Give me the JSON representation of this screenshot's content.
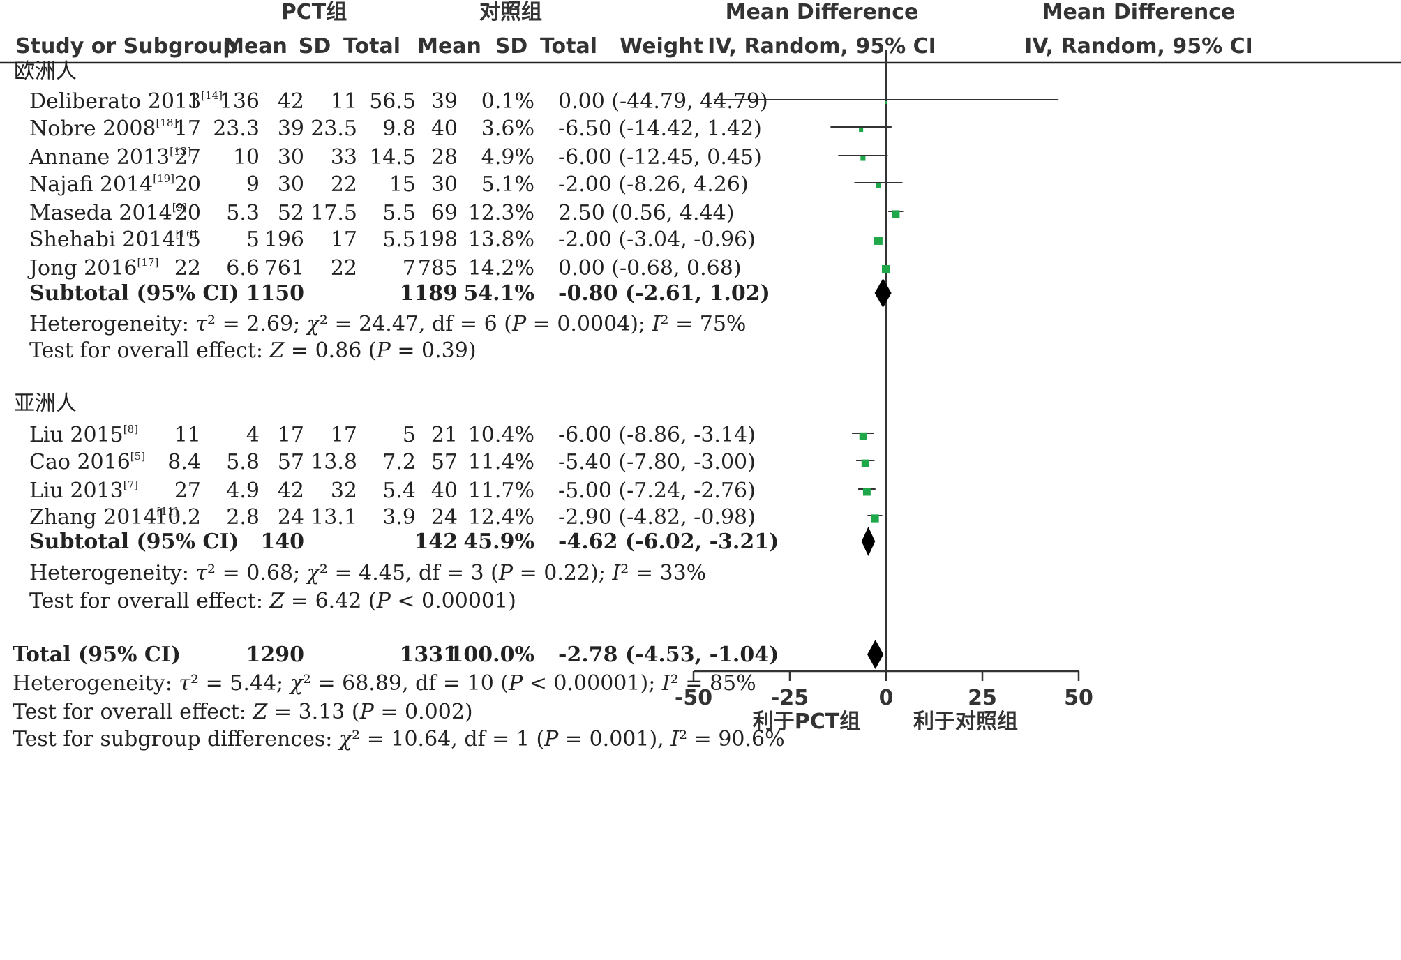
{
  "header": {
    "group_pct": "PCT组",
    "group_ctrl": "对照组",
    "md_title": "Mean Difference",
    "plot_title": "Mean Difference",
    "col_study": "Study or Subgroup",
    "col_mean1": "Mean",
    "col_sd1": "SD",
    "col_total1": "Total",
    "col_mean2": "Mean",
    "col_sd2": "SD",
    "col_total2": "Total",
    "col_weight": "Weight",
    "col_ci": "IV, Random, 95% CI",
    "plot_ci": "IV, Random, 95% CI"
  },
  "axis": {
    "ticks": [
      "-50",
      "-25",
      "0",
      "25",
      "50"
    ],
    "favors_left": "利于PCT组",
    "favors_right": "利于对照组"
  },
  "colors": {
    "square": "#1fa84a",
    "diamond": "#000000",
    "line": "#333333"
  },
  "chart_data": {
    "type": "forest",
    "xlim": [
      -50,
      50
    ],
    "x_ticks": [
      -50,
      -25,
      0,
      25,
      50
    ],
    "groups": [
      {
        "name": "欧洲人",
        "studies": [
          {
            "study": "Deliberato 2013",
            "ref": "[14]",
            "m1": "11",
            "sd1": "136",
            "n1": "42",
            "m2": "11",
            "sd2": "56.5",
            "n2": "39",
            "weight": "0.1%",
            "ci": "0.00 (-44.79, 44.79)",
            "md": 0.0,
            "lo": -44.79,
            "hi": 44.79,
            "w": 0.1
          },
          {
            "study": "Nobre 2008",
            "ref": "[18]",
            "m1": "17",
            "sd1": "23.3",
            "n1": "39",
            "m2": "23.5",
            "sd2": "9.8",
            "n2": "40",
            "weight": "3.6%",
            "ci": "-6.50 (-14.42, 1.42)",
            "md": -6.5,
            "lo": -14.42,
            "hi": 1.42,
            "w": 3.6
          },
          {
            "study": "Annane 2013",
            "ref": "[13]",
            "m1": "27",
            "sd1": "10",
            "n1": "30",
            "m2": "33",
            "sd2": "14.5",
            "n2": "28",
            "weight": "4.9%",
            "ci": "-6.00 (-12.45, 0.45)",
            "md": -6.0,
            "lo": -12.45,
            "hi": 0.45,
            "w": 4.9
          },
          {
            "study": "Najafi 2014",
            "ref": "[19]",
            "m1": "20",
            "sd1": "9",
            "n1": "30",
            "m2": "22",
            "sd2": "15",
            "n2": "30",
            "weight": "5.1%",
            "ci": "-2.00 (-8.26, 4.26)",
            "md": -2.0,
            "lo": -8.26,
            "hi": 4.26,
            "w": 5.1
          },
          {
            "study": "Maseda 2014",
            "ref": "[9]",
            "m1": "20",
            "sd1": "5.3",
            "n1": "52",
            "m2": "17.5",
            "sd2": "5.5",
            "n2": "69",
            "weight": "12.3%",
            "ci": "2.50 (0.56, 4.44)",
            "md": 2.5,
            "lo": 0.56,
            "hi": 4.44,
            "w": 12.3
          },
          {
            "study": "Shehabi 2014",
            "ref": "[16]",
            "m1": "15",
            "sd1": "5",
            "n1": "196",
            "m2": "17",
            "sd2": "5.5",
            "n2": "198",
            "weight": "13.8%",
            "ci": "-2.00 (-3.04, -0.96)",
            "md": -2.0,
            "lo": -3.04,
            "hi": -0.96,
            "w": 13.8
          },
          {
            "study": "Jong 2016",
            "ref": "[17]",
            "m1": "22",
            "sd1": "6.6",
            "n1": "761",
            "m2": "22",
            "sd2": "7",
            "n2": "785",
            "weight": "14.2%",
            "ci": "0.00 (-0.68, 0.68)",
            "md": 0.0,
            "lo": -0.68,
            "hi": 0.68,
            "w": 14.2
          }
        ],
        "subtotal": {
          "label": "Subtotal (95% CI)",
          "n1": "1150",
          "n2": "1189",
          "weight": "54.1%",
          "ci": "-0.80 (-2.61, 1.02)",
          "md": -0.8,
          "lo": -2.61,
          "hi": 1.02
        },
        "heterogeneity": {
          "prefix": "Heterogeneity: ",
          "tau2_val": " = 2.69; ",
          "chi2_val": " = 24.47, df = 6 (",
          "p_val": " = 0.0004); ",
          "i2_val": " = 75%"
        },
        "overall": {
          "prefix": "Test for overall effect: ",
          "z_val": " = 0.86 (",
          "p_val": " = 0.39)"
        }
      },
      {
        "name": "亚洲人",
        "studies": [
          {
            "study": "Liu 2015",
            "ref": "[8]",
            "m1": "11",
            "sd1": "4",
            "n1": "17",
            "m2": "17",
            "sd2": "5",
            "n2": "21",
            "weight": "10.4%",
            "ci": "-6.00 (-8.86, -3.14)",
            "md": -6.0,
            "lo": -8.86,
            "hi": -3.14,
            "w": 10.4
          },
          {
            "study": "Cao 2016",
            "ref": "[5]",
            "m1": "8.4",
            "sd1": "5.8",
            "n1": "57",
            "m2": "13.8",
            "sd2": "7.2",
            "n2": "57",
            "weight": "11.4%",
            "ci": "-5.40 (-7.80, -3.00)",
            "md": -5.4,
            "lo": -7.8,
            "hi": -3.0,
            "w": 11.4
          },
          {
            "study": "Liu 2013",
            "ref": "[7]",
            "m1": "27",
            "sd1": "4.9",
            "n1": "42",
            "m2": "32",
            "sd2": "5.4",
            "n2": "40",
            "weight": "11.7%",
            "ci": "-5.00 (-7.24, -2.76)",
            "md": -5.0,
            "lo": -7.24,
            "hi": -2.76,
            "w": 11.7
          },
          {
            "study": "Zhang 2014",
            "ref": "[11]",
            "m1": "10.2",
            "sd1": "2.8",
            "n1": "24",
            "m2": "13.1",
            "sd2": "3.9",
            "n2": "24",
            "weight": "12.4%",
            "ci": "-2.90 (-4.82, -0.98)",
            "md": -2.9,
            "lo": -4.82,
            "hi": -0.98,
            "w": 12.4
          }
        ],
        "subtotal": {
          "label": "Subtotal (95% CI)",
          "n1": "140",
          "n2": "142",
          "weight": "45.9%",
          "ci": "-4.62 (-6.02, -3.21)",
          "md": -4.62,
          "lo": -6.02,
          "hi": -3.21
        },
        "heterogeneity": {
          "prefix": "Heterogeneity: ",
          "tau2_val": " = 0.68; ",
          "chi2_val": " = 4.45, df = 3 (",
          "p_val": " = 0.22); ",
          "i2_val": " = 33%"
        },
        "overall": {
          "prefix": "Test for overall effect: ",
          "z_val": " = 6.42 (",
          "p_val": " < 0.00001)"
        }
      }
    ],
    "total": {
      "label": "Total (95% CI)",
      "n1": "1290",
      "n2": "1331",
      "weight": "100.0%",
      "ci": "-2.78 (-4.53, -1.04)",
      "md": -2.78,
      "lo": -4.53,
      "hi": -1.04
    },
    "total_heterogeneity": {
      "prefix": "Heterogeneity: ",
      "tau2_val": " = 5.44; ",
      "chi2_val": " = 68.89, df = 10 (",
      "p_val": " < 0.00001); ",
      "i2_val": " = 85%"
    },
    "total_overall": {
      "prefix": "Test for overall effect: ",
      "z_val": " = 3.13 (",
      "p_val": " = 0.002)"
    },
    "subgroup_diff": {
      "prefix": "Test for subgroup differences: ",
      "chi2_val": " = 10.64, df = 1 (",
      "p_val": " = 0.001), ",
      "i2_val": " = 90.6%"
    }
  }
}
